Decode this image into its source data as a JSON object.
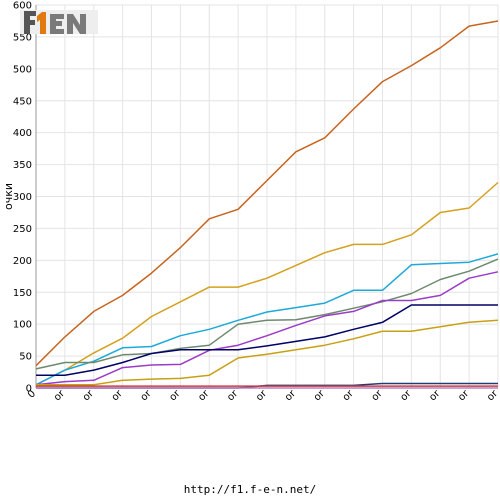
{
  "footer": {
    "url": "http://f1.f-e-n.net/"
  },
  "logo": {
    "text": "F1EN"
  },
  "chart_data": {
    "type": "line",
    "ylabel": "очки",
    "ylim": [
      0,
      600
    ],
    "yticks": [
      0,
      50,
      100,
      150,
      200,
      250,
      300,
      350,
      400,
      450,
      500,
      550,
      600
    ],
    "grid": true,
    "x_tick_labels": [
      "0",
      "or",
      "or",
      "or",
      "or",
      "or",
      "or",
      "or",
      "or",
      "or",
      "or",
      "or",
      "or",
      "or",
      "or",
      "or",
      "or"
    ],
    "x": [
      0,
      1,
      2,
      3,
      4,
      5,
      6,
      7,
      8,
      9,
      10,
      11,
      12,
      13,
      14,
      15,
      16
    ],
    "series": [
      {
        "color": "#c8641e",
        "values": [
          35,
          80,
          120,
          145,
          180,
          220,
          265,
          280,
          325,
          370,
          392,
          437,
          480,
          505,
          533,
          567,
          575
        ]
      },
      {
        "color": "#d4a01e",
        "values": [
          5,
          28,
          55,
          78,
          112,
          135,
          158,
          158,
          172,
          192,
          212,
          225,
          225,
          240,
          275,
          282,
          322
        ]
      },
      {
        "color": "#1ea9d9",
        "values": [
          5,
          28,
          42,
          63,
          65,
          82,
          92,
          106,
          119,
          126,
          133,
          153,
          153,
          193,
          195,
          197,
          210
        ]
      },
      {
        "color": "#6e8a6e",
        "values": [
          30,
          40,
          40,
          52,
          54,
          62,
          67,
          100,
          106,
          107,
          115,
          125,
          135,
          148,
          170,
          183,
          202
        ]
      },
      {
        "color": "#9b3cc8",
        "values": [
          5,
          10,
          12,
          32,
          36,
          37,
          59,
          67,
          82,
          98,
          113,
          120,
          137,
          137,
          145,
          172,
          182
        ]
      },
      {
        "color": "#000066",
        "values": [
          20,
          20,
          28,
          40,
          54,
          60,
          60,
          60,
          66,
          73,
          80,
          92,
          103,
          130,
          130,
          130,
          130
        ]
      },
      {
        "color": "#c8a014",
        "values": [
          5,
          5,
          5,
          12,
          14,
          15,
          20,
          47,
          53,
          60,
          67,
          77,
          89,
          89,
          96,
          103,
          106
        ]
      },
      {
        "color": "#1e3c78",
        "values": [
          0,
          0,
          0,
          0,
          0,
          0,
          0,
          0,
          4,
          4,
          4,
          4,
          7,
          7,
          7,
          7,
          7
        ]
      },
      {
        "color": "#d23c3c",
        "values": [
          3,
          3,
          3,
          3,
          3,
          3,
          3,
          3,
          3,
          3,
          3,
          3,
          3,
          3,
          3,
          3,
          3
        ]
      },
      {
        "color": "#b482c8",
        "values": [
          0,
          0,
          0,
          0,
          0,
          0,
          0,
          0,
          0,
          0,
          0,
          0,
          0,
          0,
          0,
          0,
          0
        ]
      }
    ]
  }
}
